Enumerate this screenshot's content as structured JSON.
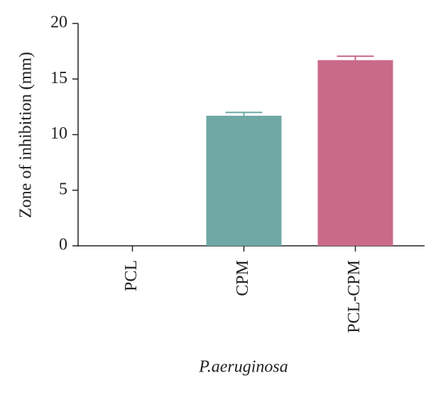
{
  "chart_data": {
    "type": "bar",
    "x_label": "P.aeruginosa",
    "y_label": "Zone of inhibition (mm)",
    "categories": [
      "PCL",
      "CPM",
      "PCL-CPM"
    ],
    "values": [
      0,
      11.7,
      16.7
    ],
    "errors": [
      null,
      0.3,
      0.35
    ],
    "colors": [
      "#6fa8a5",
      "#6fa8a5",
      "#c96a88"
    ],
    "ylim": [
      0,
      20
    ],
    "yticks": [
      0,
      5,
      10,
      15,
      20
    ],
    "grid": false
  }
}
